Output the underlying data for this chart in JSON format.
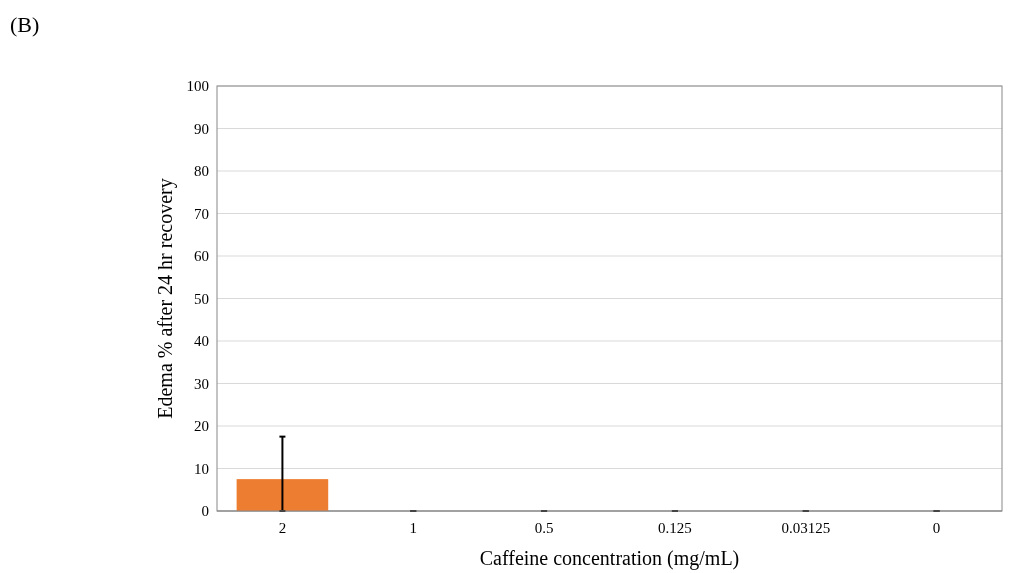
{
  "chart_data": {
    "type": "bar",
    "annotations": [
      "(B)"
    ],
    "xlabel": "Caffeine concentration (mg/mL)",
    "ylabel": "Edema % after 24 hr recovery",
    "categories": [
      "2",
      "1",
      "0.5",
      "0.125",
      "0.03125",
      "0"
    ],
    "values": [
      7.5,
      0,
      0,
      0,
      0,
      0
    ],
    "color": "#ed7d31",
    "errors": [
      [
        0,
        17.5
      ],
      0,
      0,
      0,
      0,
      0
    ],
    "ylim": [
      0,
      100
    ],
    "yticks": [
      0,
      10,
      20,
      30,
      40,
      50,
      60,
      70,
      80,
      90,
      100
    ],
    "grid": "y"
  }
}
